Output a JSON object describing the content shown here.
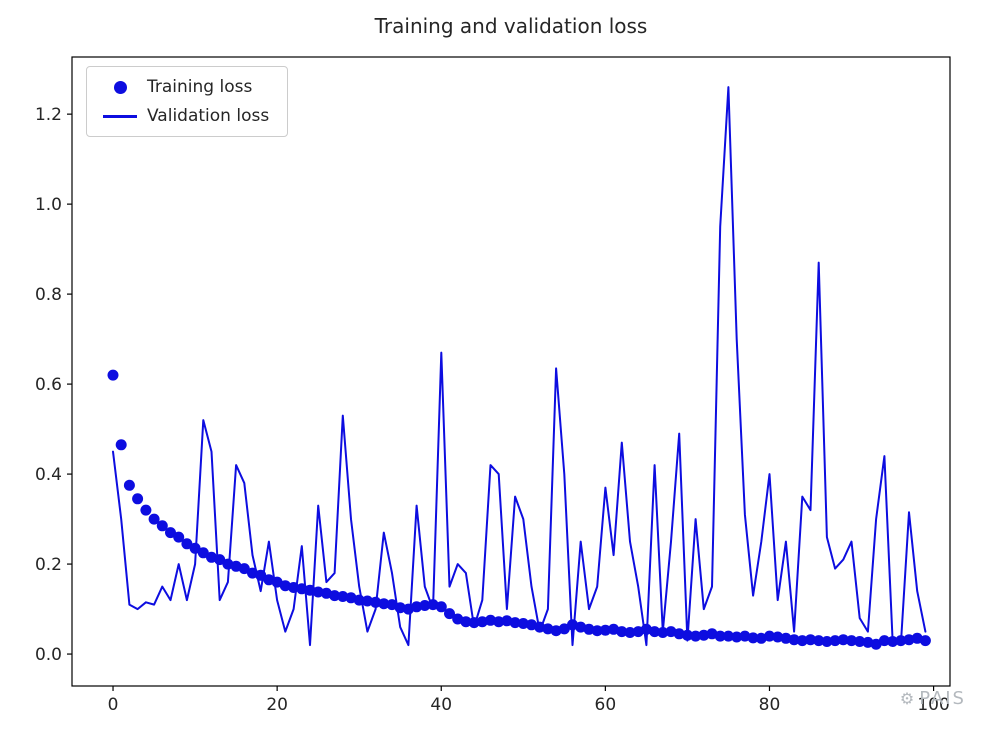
{
  "watermark": {
    "text": "PAIS"
  },
  "chart_data": {
    "type": "line",
    "title": "Training and validation loss",
    "xlabel": "",
    "ylabel": "",
    "x_note": "x value = epoch index 0..99",
    "xticks": [
      0,
      20,
      40,
      60,
      80,
      100
    ],
    "yticks": [
      "0.0",
      "0.2",
      "0.4",
      "0.6",
      "0.8",
      "1.0",
      "1.2"
    ],
    "xlim": [
      -5,
      102
    ],
    "ylim": [
      -0.071,
      1.327
    ],
    "grid": false,
    "legend_position": "upper left",
    "colors": {
      "line": "#0d0de0",
      "marker": "#0d0de0",
      "text": "#262626",
      "axis": "#000000"
    },
    "series": [
      {
        "name": "Training loss",
        "style": "scatter",
        "values": [
          0.62,
          0.465,
          0.375,
          0.345,
          0.32,
          0.3,
          0.285,
          0.27,
          0.26,
          0.245,
          0.235,
          0.225,
          0.215,
          0.21,
          0.2,
          0.195,
          0.19,
          0.18,
          0.175,
          0.165,
          0.16,
          0.152,
          0.148,
          0.145,
          0.142,
          0.138,
          0.135,
          0.13,
          0.128,
          0.125,
          0.12,
          0.118,
          0.115,
          0.112,
          0.11,
          0.103,
          0.1,
          0.105,
          0.108,
          0.11,
          0.105,
          0.09,
          0.078,
          0.072,
          0.07,
          0.072,
          0.075,
          0.072,
          0.074,
          0.07,
          0.068,
          0.065,
          0.06,
          0.056,
          0.052,
          0.056,
          0.065,
          0.06,
          0.055,
          0.052,
          0.053,
          0.055,
          0.05,
          0.048,
          0.05,
          0.055,
          0.05,
          0.048,
          0.05,
          0.045,
          0.042,
          0.04,
          0.042,
          0.045,
          0.04,
          0.04,
          0.038,
          0.04,
          0.036,
          0.035,
          0.04,
          0.038,
          0.035,
          0.032,
          0.03,
          0.032,
          0.03,
          0.028,
          0.03,
          0.032,
          0.03,
          0.028,
          0.026,
          0.022,
          0.03,
          0.028,
          0.03,
          0.032,
          0.035,
          0.03
        ]
      },
      {
        "name": "Validation loss",
        "style": "line",
        "values": [
          0.45,
          0.3,
          0.11,
          0.1,
          0.115,
          0.11,
          0.15,
          0.12,
          0.2,
          0.12,
          0.2,
          0.52,
          0.45,
          0.12,
          0.16,
          0.42,
          0.38,
          0.22,
          0.14,
          0.25,
          0.12,
          0.05,
          0.1,
          0.24,
          0.02,
          0.33,
          0.16,
          0.18,
          0.53,
          0.3,
          0.15,
          0.05,
          0.1,
          0.27,
          0.18,
          0.06,
          0.02,
          0.33,
          0.15,
          0.1,
          0.67,
          0.15,
          0.2,
          0.18,
          0.06,
          0.12,
          0.42,
          0.4,
          0.1,
          0.35,
          0.3,
          0.15,
          0.05,
          0.1,
          0.635,
          0.4,
          0.02,
          0.25,
          0.1,
          0.15,
          0.37,
          0.22,
          0.47,
          0.25,
          0.15,
          0.02,
          0.42,
          0.05,
          0.25,
          0.49,
          0.03,
          0.3,
          0.1,
          0.15,
          0.95,
          1.26,
          0.7,
          0.31,
          0.13,
          0.25,
          0.4,
          0.12,
          0.25,
          0.05,
          0.35,
          0.32,
          0.87,
          0.26,
          0.19,
          0.21,
          0.25,
          0.08,
          0.05,
          0.3,
          0.44,
          0.03,
          0.02,
          0.315,
          0.14,
          0.05
        ]
      }
    ]
  }
}
